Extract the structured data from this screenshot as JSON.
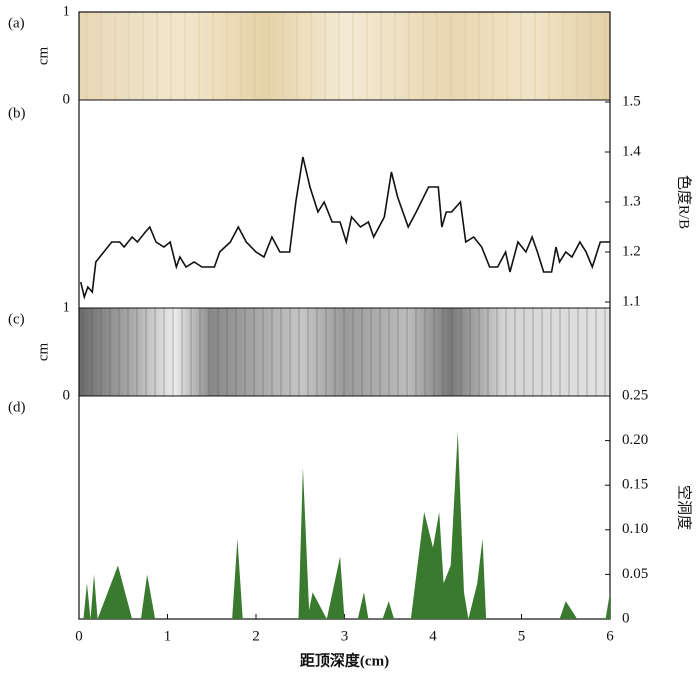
{
  "chart_data": [
    {
      "type": "image",
      "label": "(a)",
      "ylabel": "cm",
      "xlim": [
        0,
        6
      ],
      "ylim": [
        0,
        1
      ],
      "yticks": [
        0,
        1
      ]
    },
    {
      "type": "line",
      "label": "(b)",
      "ylabel": "色度R/B",
      "color": "#111111",
      "xlim": [
        0,
        6
      ],
      "ylim": [
        1.1,
        1.5
      ],
      "yticks": [
        1.1,
        1.2,
        1.3,
        1.4,
        1.5
      ],
      "x": [
        0.02,
        0.06,
        0.1,
        0.15,
        0.19,
        0.28,
        0.37,
        0.46,
        0.51,
        0.6,
        0.66,
        0.75,
        0.8,
        0.87,
        0.96,
        1.03,
        1.1,
        1.14,
        1.21,
        1.3,
        1.39,
        1.53,
        1.59,
        1.71,
        1.8,
        1.89,
        2.0,
        2.09,
        2.18,
        2.27,
        2.38,
        2.45,
        2.53,
        2.61,
        2.7,
        2.77,
        2.86,
        2.95,
        3.02,
        3.08,
        3.18,
        3.27,
        3.33,
        3.45,
        3.53,
        3.6,
        3.72,
        3.81,
        3.95,
        4.06,
        4.1,
        4.15,
        4.21,
        4.31,
        4.37,
        4.46,
        4.55,
        4.64,
        4.73,
        4.82,
        4.87,
        4.96,
        5.05,
        5.12,
        5.18,
        5.25,
        5.34,
        5.39,
        5.43,
        5.5,
        5.57,
        5.66,
        5.73,
        5.8,
        5.89,
        6.0
      ],
      "values": [
        1.14,
        1.11,
        1.13,
        1.12,
        1.18,
        1.2,
        1.22,
        1.22,
        1.21,
        1.23,
        1.22,
        1.24,
        1.25,
        1.22,
        1.21,
        1.22,
        1.17,
        1.19,
        1.17,
        1.18,
        1.17,
        1.17,
        1.2,
        1.22,
        1.25,
        1.22,
        1.2,
        1.19,
        1.23,
        1.2,
        1.2,
        1.3,
        1.39,
        1.33,
        1.28,
        1.3,
        1.26,
        1.26,
        1.22,
        1.27,
        1.25,
        1.26,
        1.23,
        1.27,
        1.36,
        1.31,
        1.25,
        1.28,
        1.33,
        1.33,
        1.25,
        1.28,
        1.28,
        1.3,
        1.22,
        1.23,
        1.21,
        1.17,
        1.17,
        1.2,
        1.16,
        1.22,
        1.2,
        1.23,
        1.2,
        1.16,
        1.16,
        1.21,
        1.18,
        1.2,
        1.19,
        1.22,
        1.2,
        1.17,
        1.22,
        1.22
      ]
    },
    {
      "type": "image",
      "label": "(c)",
      "ylabel": "cm",
      "xlim": [
        0,
        6
      ],
      "ylim": [
        0,
        1
      ],
      "yticks": [
        0,
        1
      ]
    },
    {
      "type": "area",
      "label": "(d)",
      "ylabel": "空洞度",
      "color": "#3a7a2e",
      "xlabel": "距顶深度(cm)",
      "xlim": [
        0,
        6
      ],
      "xticks": [
        0,
        1,
        2,
        3,
        4,
        5,
        6
      ],
      "ylim": [
        0,
        0.25
      ],
      "yticks": [
        0,
        0.05,
        {
          "value": 0.1,
          "label": "0.10"
        },
        0.15,
        {
          "value": 0.2,
          "label": "0.20"
        },
        0.25
      ],
      "x": [
        0,
        0.05,
        0.09,
        0.13,
        0.17,
        0.21,
        0.44,
        0.6,
        0.7,
        0.77,
        0.86,
        1.73,
        1.79,
        1.85,
        2.48,
        2.53,
        2.6,
        2.64,
        2.8,
        2.95,
        3.0,
        3.15,
        3.22,
        3.27,
        3.43,
        3.5,
        3.56,
        3.75,
        3.9,
        4.0,
        4.07,
        4.12,
        4.2,
        4.28,
        4.35,
        4.4,
        4.5,
        4.56,
        4.6,
        5.43,
        5.5,
        5.63,
        5.95,
        6.0
      ],
      "values": [
        0,
        0,
        0.04,
        0,
        0.05,
        0,
        0.06,
        0,
        0,
        0.05,
        0,
        0,
        0.09,
        0,
        0,
        0.17,
        0.01,
        0.03,
        0,
        0.07,
        0,
        0,
        0.03,
        0,
        0,
        0.02,
        0,
        0,
        0.12,
        0.08,
        0.12,
        0.04,
        0.06,
        0.21,
        0.03,
        0,
        0.04,
        0.09,
        0,
        0,
        0.02,
        0,
        0,
        0.03
      ]
    }
  ]
}
